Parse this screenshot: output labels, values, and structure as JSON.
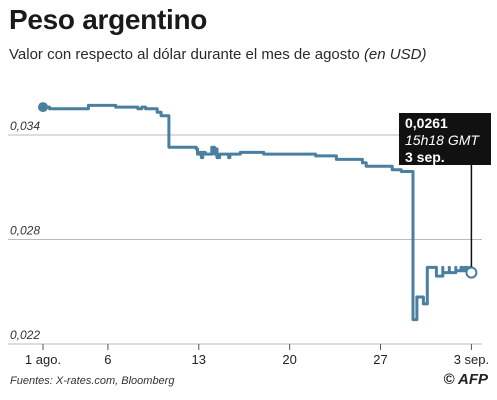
{
  "title": "Peso argentino",
  "subtitle": "Valor con respecto al dólar durante el mes de agosto",
  "unit": "(en USD)",
  "source": "Fuentes: X-rates.com, Bloomberg",
  "credit": "© AFP",
  "callout": {
    "value": "0,0261",
    "time": "15h18 GMT",
    "date": "3 sep."
  },
  "colors": {
    "line": "#4a7fa0",
    "grid": "#bbbbbb",
    "callout_bg": "#111111"
  },
  "chart_data": {
    "type": "line",
    "title": "Peso argentino",
    "subtitle": "Valor con respecto al dólar durante el mes de agosto",
    "ylabel": "",
    "xlabel": "",
    "ylim": [
      0.022,
      0.0375
    ],
    "xlim": [
      1,
      34.2
    ],
    "yticks": [
      {
        "value": 0.022,
        "label": "0,022"
      },
      {
        "value": 0.028,
        "label": "0,028"
      },
      {
        "value": 0.034,
        "label": "0,034"
      }
    ],
    "xticks": [
      {
        "value": 1,
        "label": "1 ago."
      },
      {
        "value": 6,
        "label": "6"
      },
      {
        "value": 13,
        "label": "13"
      },
      {
        "value": 20,
        "label": "20"
      },
      {
        "value": 27,
        "label": "27"
      },
      {
        "value": 34,
        "label": "3 sep."
      }
    ],
    "grid": "horizontal",
    "series": [
      {
        "x": [
          1,
          1.5,
          3.9,
          4.5,
          6.2,
          6.6,
          7.9,
          8.3,
          8.6,
          8.9,
          9.8,
          10.1,
          10.7,
          12.3,
          12.8,
          12.9,
          13.1,
          13.2,
          13.3,
          13.5,
          13.8,
          14,
          14.2,
          14.3,
          14.4,
          14.6,
          15.2,
          15.3,
          15.4,
          15.7,
          16.2,
          17.7,
          18,
          19.5,
          21.8,
          22,
          22.5,
          23.6,
          23.8,
          24.6,
          25.6,
          25.9,
          26.4,
          27.6,
          27.9,
          28.6,
          29.5,
          29.5,
          29.8,
          29.8,
          30.3,
          30.3,
          30.6,
          30.6,
          31.3,
          31.3,
          31.8,
          31.8,
          32.3,
          32.3,
          32.8,
          32.8,
          33.2,
          33.3,
          33.5,
          33.7,
          33.9,
          34
        ],
        "values": [
          0.0356,
          0.0355,
          0.0355,
          0.0357,
          0.0357,
          0.0356,
          0.0356,
          0.0355,
          0.0356,
          0.0355,
          0.0353,
          0.0351,
          0.0333,
          0.0333,
          0.0332,
          0.0329,
          0.033,
          0.0327,
          0.033,
          0.0329,
          0.0329,
          0.0333,
          0.0329,
          0.0332,
          0.0327,
          0.0329,
          0.0329,
          0.0327,
          0.0329,
          0.0329,
          0.033,
          0.033,
          0.0329,
          0.0329,
          0.0329,
          0.0328,
          0.0328,
          0.0326,
          0.0326,
          0.0326,
          0.0324,
          0.0322,
          0.0322,
          0.0322,
          0.032,
          0.0319,
          0.0284,
          0.0234,
          0.0236,
          0.0247,
          0.0247,
          0.0243,
          0.0243,
          0.0264,
          0.0264,
          0.0259,
          0.0264,
          0.0261,
          0.0264,
          0.0261,
          0.0264,
          0.0262,
          0.0264,
          0.0262,
          0.0264,
          0.0261,
          0.0264,
          0.0261
        ]
      }
    ],
    "last_point": {
      "x": 34,
      "y": 0.0261
    }
  }
}
